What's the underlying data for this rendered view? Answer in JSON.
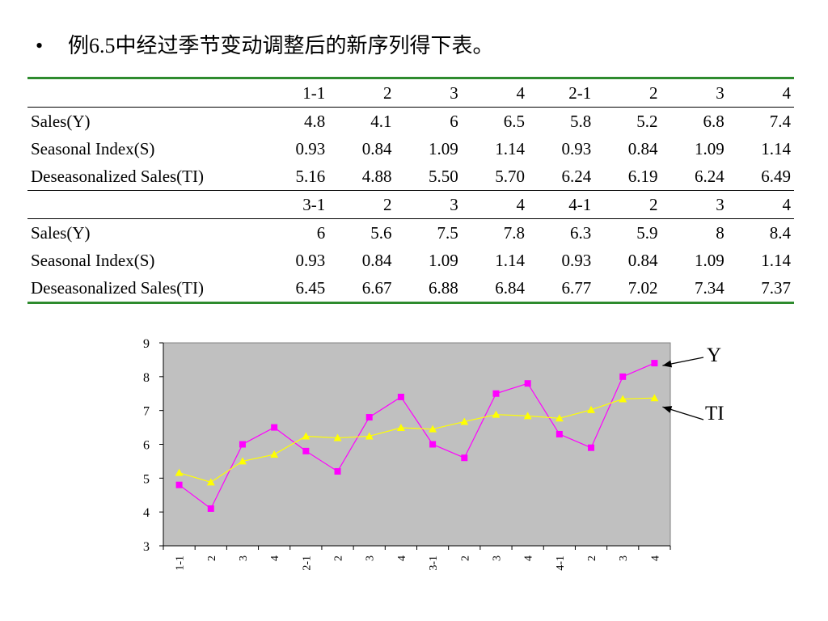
{
  "heading": {
    "bullet": "•",
    "text": "例6.5中经过季节变动调整后的新序列得下表。"
  },
  "table": {
    "blocks": [
      {
        "header": [
          "",
          "1-1",
          "2",
          "3",
          "4",
          "2-1",
          "2",
          "3",
          "4"
        ],
        "rows": [
          [
            "Sales(Y)",
            "4.8",
            "4.1",
            "6",
            "6.5",
            "5.8",
            "5.2",
            "6.8",
            "7.4"
          ],
          [
            "Seasonal Index(S)",
            "0.93",
            "0.84",
            "1.09",
            "1.14",
            "0.93",
            "0.84",
            "1.09",
            "1.14"
          ],
          [
            "Deseasonalized Sales(TI)",
            "5.16",
            "4.88",
            "5.50",
            "5.70",
            "6.24",
            "6.19",
            "6.24",
            "6.49"
          ]
        ]
      },
      {
        "header": [
          "",
          "3-1",
          "2",
          "3",
          "4",
          "4-1",
          "2",
          "3",
          "4"
        ],
        "rows": [
          [
            "Sales(Y)",
            "6",
            "5.6",
            "7.5",
            "7.8",
            "6.3",
            "5.9",
            "8",
            "8.4"
          ],
          [
            "Seasonal Index(S)",
            "0.93",
            "0.84",
            "1.09",
            "1.14",
            "0.93",
            "0.84",
            "1.09",
            "1.14"
          ],
          [
            "Deseasonalized Sales(TI)",
            "6.45",
            "6.67",
            "6.88",
            "6.84",
            "6.77",
            "7.02",
            "7.34",
            "7.37"
          ]
        ]
      }
    ]
  },
  "chart_data": {
    "type": "line",
    "categories": [
      "1-1",
      "2",
      "3",
      "4",
      "2-1",
      "2",
      "3",
      "4",
      "3-1",
      "2",
      "3",
      "4",
      "4-1",
      "2",
      "3",
      "4"
    ],
    "series": [
      {
        "name": "Y",
        "marker": "square",
        "color": "#ff00ff",
        "values": [
          4.8,
          4.1,
          6,
          6.5,
          5.8,
          5.2,
          6.8,
          7.4,
          6,
          5.6,
          7.5,
          7.8,
          6.3,
          5.9,
          8,
          8.4
        ]
      },
      {
        "name": "TI",
        "marker": "triangle",
        "color": "#ffff00",
        "values": [
          5.16,
          4.88,
          5.5,
          5.7,
          6.24,
          6.19,
          6.24,
          6.49,
          6.45,
          6.67,
          6.88,
          6.84,
          6.77,
          7.02,
          7.34,
          7.37
        ]
      }
    ],
    "title": "",
    "xlabel": "",
    "ylabel": "",
    "ylim": [
      3,
      9
    ],
    "yticks": [
      "3",
      "4",
      "5",
      "6",
      "7",
      "8",
      "9"
    ],
    "plot_background": "#c0c0c0",
    "grid": false,
    "legend": "arrow callouts at right"
  }
}
